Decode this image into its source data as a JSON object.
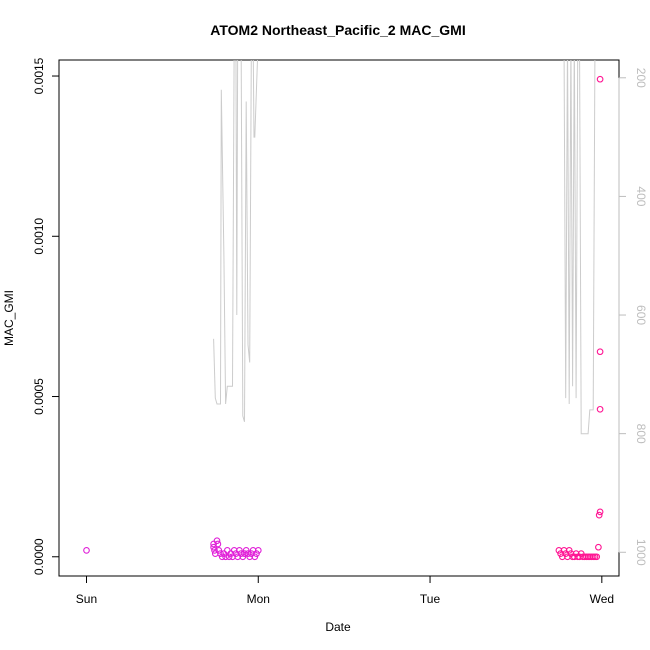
{
  "chart_data": {
    "type": "scatter",
    "title": "ATOM2 Northeast_Pacific_2 MAC_GMI",
    "xlabel": "Date",
    "ylabel": "MAC_GMI",
    "x_ticks": [
      {
        "label": "Sun",
        "day": 0
      },
      {
        "label": "Mon",
        "day": 1
      },
      {
        "label": "Tue",
        "day": 2
      },
      {
        "label": "Wed",
        "day": 3
      }
    ],
    "xlim": [
      -0.16,
      3.1
    ],
    "ylim": [
      -6e-05,
      0.00155
    ],
    "y_ticks": [
      {
        "label": "0.0000",
        "value": 0
      },
      {
        "label": "0.0005",
        "value": 0.0005
      },
      {
        "label": "0.0010",
        "value": 0.001
      },
      {
        "label": "0.0015",
        "value": 0.0015
      }
    ],
    "right_axis": {
      "label": "",
      "ylim": [
        1040,
        170
      ],
      "color": "#bdbdbd",
      "ticks": [
        {
          "label": "200",
          "value": 200
        },
        {
          "label": "400",
          "value": 400
        },
        {
          "label": "600",
          "value": 600
        },
        {
          "label": "800",
          "value": 800
        },
        {
          "label": "1000",
          "value": 1000
        }
      ]
    },
    "grid": false,
    "series": [
      {
        "kind": "points",
        "color": "#e020d8",
        "points": [
          [
            0.0,
            2e-05
          ],
          [
            0.74,
            4e-05
          ],
          [
            0.74,
            3e-05
          ],
          [
            0.745,
            2e-05
          ],
          [
            0.75,
            1e-05
          ],
          [
            0.76,
            5e-05
          ],
          [
            0.765,
            4e-05
          ],
          [
            0.77,
            2e-05
          ],
          [
            0.78,
            1e-05
          ],
          [
            0.79,
            0.0
          ],
          [
            0.8,
            1e-05
          ],
          [
            0.81,
            0.0
          ],
          [
            0.82,
            2e-05
          ],
          [
            0.83,
            0.0
          ],
          [
            0.84,
            1e-05
          ],
          [
            0.85,
            0.0
          ],
          [
            0.86,
            2e-05
          ],
          [
            0.87,
            1e-05
          ],
          [
            0.88,
            0.0
          ],
          [
            0.89,
            2e-05
          ],
          [
            0.9,
            1e-05
          ],
          [
            0.91,
            0.0
          ],
          [
            0.92,
            1e-05
          ],
          [
            0.93,
            2e-05
          ],
          [
            0.94,
            1e-05
          ],
          [
            0.95,
            0.0
          ],
          [
            0.96,
            1e-05
          ],
          [
            0.97,
            2e-05
          ],
          [
            0.98,
            0.0
          ],
          [
            0.99,
            1e-05
          ],
          [
            1.0,
            2e-05
          ]
        ]
      },
      {
        "kind": "points",
        "color": "#ff1493",
        "points": [
          [
            2.75,
            2e-05
          ],
          [
            2.76,
            1e-05
          ],
          [
            2.77,
            0.0
          ],
          [
            2.78,
            2e-05
          ],
          [
            2.79,
            1e-05
          ],
          [
            2.8,
            0.0
          ],
          [
            2.81,
            2e-05
          ],
          [
            2.82,
            1e-05
          ],
          [
            2.83,
            0.0
          ],
          [
            2.84,
            0.0
          ],
          [
            2.85,
            1e-05
          ],
          [
            2.86,
            0.0
          ],
          [
            2.87,
            0.0
          ],
          [
            2.88,
            1e-05
          ],
          [
            2.89,
            0.0
          ],
          [
            2.9,
            0.0
          ],
          [
            2.91,
            0.0
          ],
          [
            2.92,
            0.0
          ],
          [
            2.93,
            0.0
          ],
          [
            2.94,
            0.0
          ],
          [
            2.95,
            0.0
          ],
          [
            2.96,
            0.0
          ],
          [
            2.97,
            0.0
          ],
          [
            2.98,
            3e-05
          ],
          [
            2.985,
            0.00013
          ],
          [
            2.99,
            0.00014
          ],
          [
            2.99,
            0.00046
          ],
          [
            2.99,
            0.00064
          ],
          [
            2.99,
            0.00149
          ]
        ]
      },
      {
        "kind": "line",
        "axis": "right",
        "color": "#cccccc",
        "points": [
          [
            0.74,
            640
          ],
          [
            0.75,
            740
          ],
          [
            0.76,
            750
          ],
          [
            0.77,
            750
          ],
          [
            0.78,
            750
          ],
          [
            0.785,
            220
          ],
          [
            0.8,
            500
          ],
          [
            0.81,
            750
          ],
          [
            0.82,
            720
          ],
          [
            0.83,
            720
          ],
          [
            0.84,
            720
          ],
          [
            0.85,
            720
          ],
          [
            0.86,
            130
          ],
          [
            0.87,
            130
          ],
          [
            0.875,
            600
          ],
          [
            0.88,
            130
          ],
          [
            0.9,
            130
          ],
          [
            0.91,
            770
          ],
          [
            0.92,
            780
          ],
          [
            0.93,
            240
          ],
          [
            0.94,
            650
          ],
          [
            0.95,
            680
          ],
          [
            0.96,
            130
          ],
          [
            0.97,
            130
          ],
          [
            0.975,
            300
          ],
          [
            0.98,
            300
          ],
          [
            1.0,
            130
          ]
        ]
      },
      {
        "kind": "line",
        "axis": "right",
        "color": "#cccccc",
        "points": [
          [
            2.74,
            130
          ],
          [
            2.75,
            130
          ],
          [
            2.76,
            130
          ],
          [
            2.77,
            130
          ],
          [
            2.78,
            130
          ],
          [
            2.79,
            740
          ],
          [
            2.8,
            130
          ],
          [
            2.81,
            750
          ],
          [
            2.82,
            130
          ],
          [
            2.83,
            720
          ],
          [
            2.84,
            130
          ],
          [
            2.85,
            740
          ],
          [
            2.86,
            130
          ],
          [
            2.87,
            130
          ],
          [
            2.88,
            800
          ],
          [
            2.89,
            800
          ],
          [
            2.9,
            800
          ],
          [
            2.91,
            800
          ],
          [
            2.92,
            800
          ],
          [
            2.93,
            760
          ],
          [
            2.94,
            760
          ],
          [
            2.95,
            760
          ],
          [
            2.96,
            130
          ],
          [
            2.97,
            130
          ],
          [
            2.98,
            130
          ],
          [
            3.0,
            130
          ]
        ]
      }
    ]
  }
}
